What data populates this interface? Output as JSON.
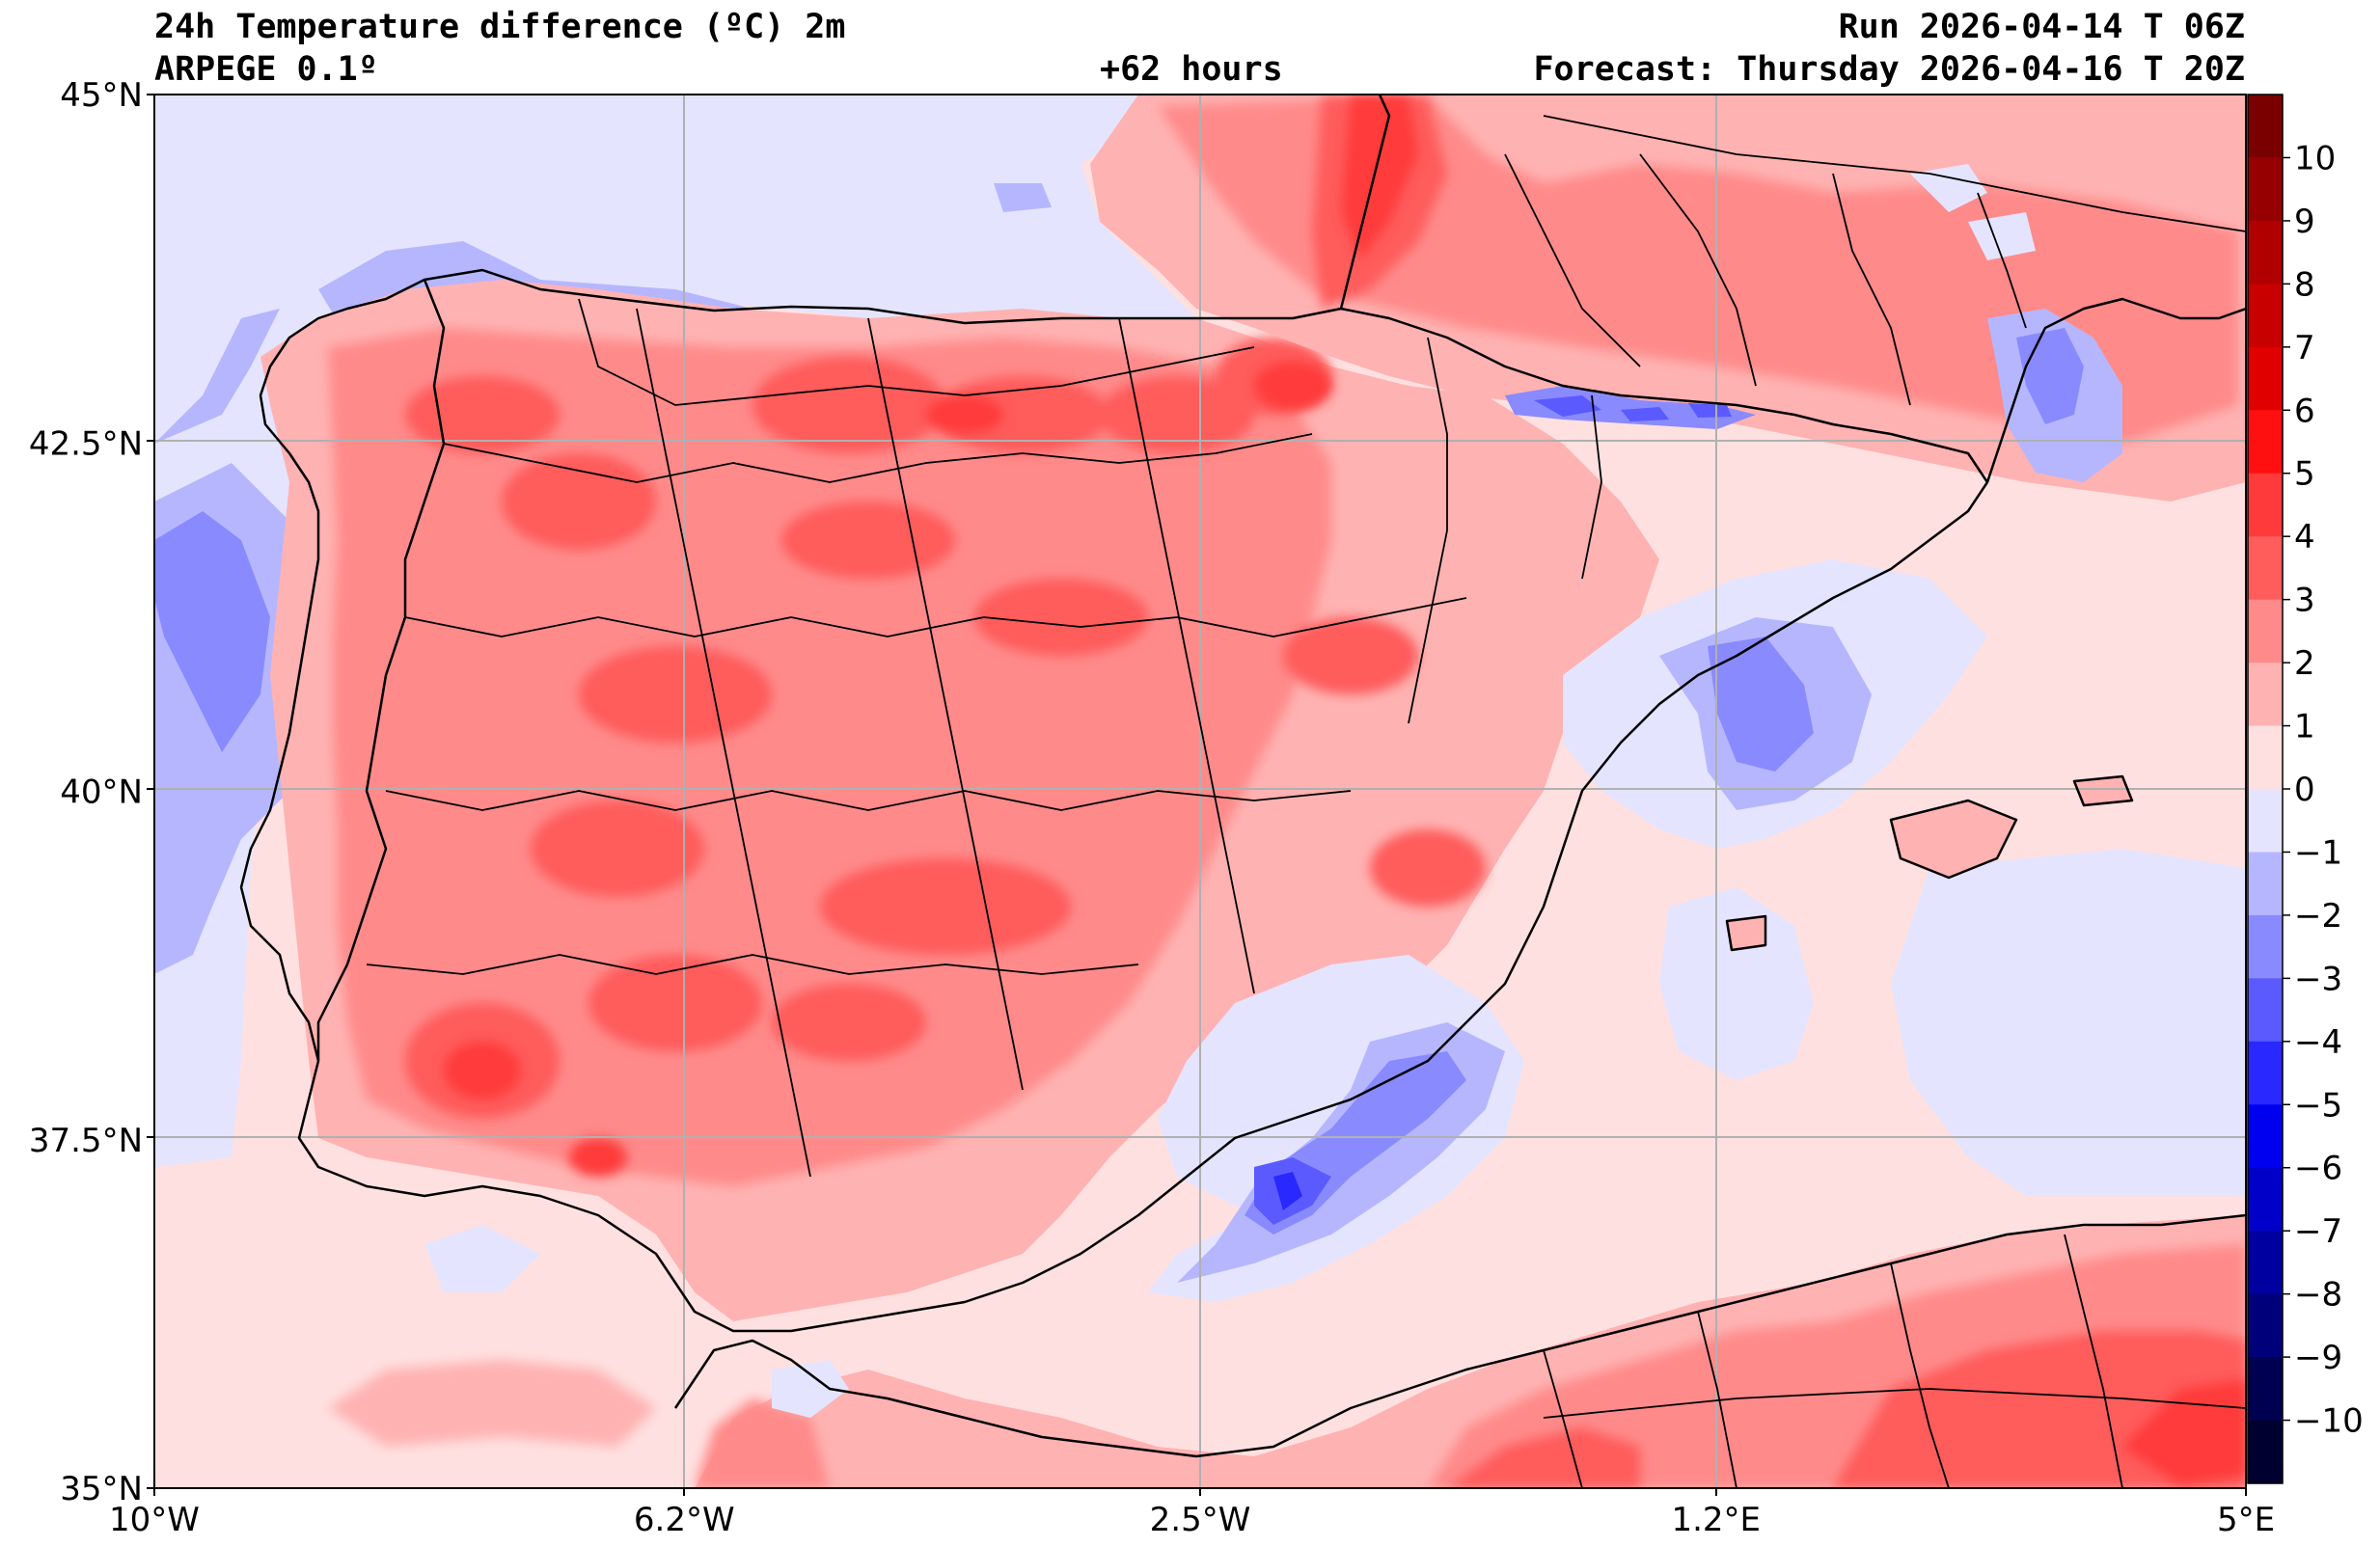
{
  "header": {
    "title": "24h Temperature difference (ºC) 2m",
    "model": "ARPEGE 0.1º",
    "lead": "+62 hours",
    "run": "Run 2026-04-14 T 06Z",
    "forecast": "Forecast: Thursday 2026-04-16 T 20Z"
  },
  "map": {
    "lon_range": [
      -10,
      5
    ],
    "lat_range": [
      35,
      45
    ],
    "lon_ticks": [
      {
        "value": -10,
        "label": "10°W"
      },
      {
        "value": -6.2,
        "label": "6.2°W"
      },
      {
        "value": -2.5,
        "label": "2.5°W"
      },
      {
        "value": 1.2,
        "label": "1.2°E"
      },
      {
        "value": 5,
        "label": "5°E"
      }
    ],
    "lat_ticks": [
      {
        "value": 45,
        "label": "45°N"
      },
      {
        "value": 42.5,
        "label": "42.5°N"
      },
      {
        "value": 40,
        "label": "40°N"
      },
      {
        "value": 37.5,
        "label": "37.5°N"
      },
      {
        "value": 35,
        "label": "35°N"
      }
    ],
    "grid": true
  },
  "colorbar": {
    "levels": [
      10,
      9,
      8,
      7,
      6,
      5,
      4,
      3,
      2,
      1,
      0,
      -1,
      -2,
      -3,
      -4,
      -5,
      -6,
      -7,
      -8,
      -9,
      -10
    ],
    "labels": [
      "10",
      "9",
      "8",
      "7",
      "6",
      "5",
      "4",
      "3",
      "2",
      "1",
      "0",
      "−1",
      "−2",
      "−3",
      "−4",
      "−5",
      "−6",
      "−7",
      "−8",
      "−9",
      "−10"
    ],
    "bands": [
      "#7a0000",
      "#960000",
      "#b00000",
      "#c80000",
      "#e00000",
      "#ff1010",
      "#ff3a3a",
      "#ff5c5c",
      "#ff8a8a",
      "#ffb2b2",
      "#ffe0e0",
      "#e4e4ff",
      "#b6b6ff",
      "#8a8aff",
      "#5a5aff",
      "#2828ff",
      "#0000f0",
      "#0000c8",
      "#0000a0",
      "#00007a",
      "#000050",
      "#000030"
    ]
  }
}
